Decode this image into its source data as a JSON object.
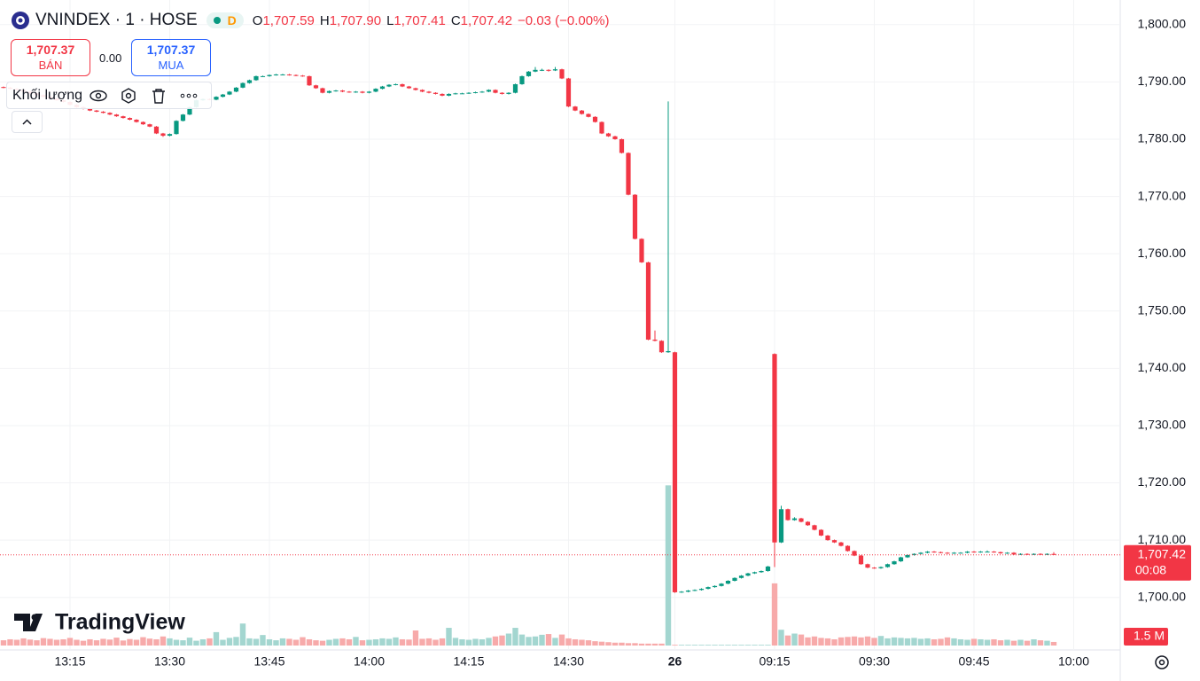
{
  "header": {
    "symbol": "VNINDEX · 1 · HOSE",
    "badge": "D",
    "o_label": "O",
    "o": "1,707.59",
    "h_label": "H",
    "h": "1,707.90",
    "l_label": "L",
    "l": "1,707.41",
    "c_label": "C",
    "c": "1,707.42",
    "change": "−0.03 (−0.00%)",
    "sell_price": "1,707.37",
    "sell_label": "BÁN",
    "spread": "0.00",
    "buy_price": "1,707.37",
    "buy_label": "MUA",
    "indicator": "Khối lượng",
    "watermark": "TradingView"
  },
  "chart_data": {
    "type": "candlestick",
    "up_color": "#089981",
    "down_color": "#f23645",
    "volume_up_color": "#a3d6d0",
    "volume_down_color": "#f7aaaa",
    "grid": true,
    "ylim": [
      1691.6,
      1804.3
    ],
    "yticks": [
      {
        "value": 1700,
        "label": "1,700.00"
      },
      {
        "value": 1710,
        "label": "1,710.00"
      },
      {
        "value": 1720,
        "label": "1,720.00"
      },
      {
        "value": 1730,
        "label": "1,730.00"
      },
      {
        "value": 1740,
        "label": "1,740.00"
      },
      {
        "value": 1750,
        "label": "1,750.00"
      },
      {
        "value": 1760,
        "label": "1,760.00"
      },
      {
        "value": 1770,
        "label": "1,770.00"
      },
      {
        "value": 1780,
        "label": "1,780.00"
      },
      {
        "value": 1790,
        "label": "1,790.00"
      },
      {
        "value": 1800,
        "label": "1,800.00"
      }
    ],
    "xlim": [
      -0.53,
      168
    ],
    "xticks": [
      {
        "value": 10,
        "label": "13:15"
      },
      {
        "value": 25,
        "label": "13:30"
      },
      {
        "value": 40,
        "label": "13:45"
      },
      {
        "value": 55,
        "label": "14:00"
      },
      {
        "value": 70,
        "label": "14:15"
      },
      {
        "value": 85,
        "label": "14:30"
      },
      {
        "value": 101,
        "label": "26"
      },
      {
        "value": 116,
        "label": "09:15"
      },
      {
        "value": 131,
        "label": "09:30"
      },
      {
        "value": 146,
        "label": "09:45"
      },
      {
        "value": 161,
        "label": "10:00"
      }
    ],
    "last_price": {
      "value": 1707.42,
      "label": "1,707.42"
    },
    "countdown": "00:08",
    "volume_ylim": [
      0,
      270
    ],
    "volume_last_label": "1.5 M",
    "ohlc": [
      [
        1789.1,
        1789.2,
        1788.9,
        1789.0
      ],
      [
        1789.0,
        1789.1,
        1788.7,
        1788.8
      ],
      [
        1788.8,
        1788.9,
        1788.5,
        1788.6
      ],
      [
        1788.6,
        1788.7,
        1788.2,
        1788.3
      ],
      [
        1788.3,
        1788.4,
        1787.9,
        1788.0
      ],
      [
        1788.0,
        1788.1,
        1787.6,
        1787.7
      ],
      [
        1787.7,
        1787.8,
        1787.3,
        1787.4
      ],
      [
        1787.4,
        1787.5,
        1787.0,
        1787.1
      ],
      [
        1787.1,
        1787.2,
        1786.7,
        1786.8
      ],
      [
        1786.8,
        1786.9,
        1786.4,
        1786.5
      ],
      [
        1786.5,
        1786.6,
        1785.9,
        1786.0
      ],
      [
        1786.0,
        1786.1,
        1785.5,
        1785.6
      ],
      [
        1785.6,
        1785.7,
        1785.2,
        1785.3
      ],
      [
        1785.3,
        1785.4,
        1784.9,
        1785.0
      ],
      [
        1785.0,
        1785.1,
        1784.7,
        1784.8
      ],
      [
        1784.8,
        1784.9,
        1784.5,
        1784.6
      ],
      [
        1784.6,
        1784.7,
        1784.2,
        1784.3
      ],
      [
        1784.3,
        1784.4,
        1783.9,
        1784.0
      ],
      [
        1784.0,
        1784.1,
        1783.6,
        1783.7
      ],
      [
        1783.7,
        1783.8,
        1783.3,
        1783.4
      ],
      [
        1783.4,
        1783.5,
        1782.9,
        1783.0
      ],
      [
        1783.0,
        1783.1,
        1782.5,
        1782.6
      ],
      [
        1782.6,
        1782.7,
        1782.1,
        1782.2
      ],
      [
        1782.2,
        1782.3,
        1780.9,
        1781.0
      ],
      [
        1781.0,
        1781.1,
        1780.4,
        1780.6
      ],
      [
        1780.6,
        1781.0,
        1780.5,
        1780.9
      ],
      [
        1780.9,
        1783.3,
        1780.8,
        1783.2
      ],
      [
        1783.2,
        1784.4,
        1783.1,
        1784.3
      ],
      [
        1784.3,
        1785.7,
        1784.2,
        1785.6
      ],
      [
        1785.6,
        1786.9,
        1785.5,
        1786.8
      ],
      [
        1786.8,
        1787.1,
        1786.7,
        1787.0
      ],
      [
        1787.0,
        1787.1,
        1786.8,
        1786.9
      ],
      [
        1786.9,
        1787.5,
        1786.8,
        1787.4
      ],
      [
        1787.4,
        1787.9,
        1787.3,
        1787.8
      ],
      [
        1787.8,
        1788.4,
        1787.7,
        1788.3
      ],
      [
        1788.3,
        1789.1,
        1788.2,
        1789.0
      ],
      [
        1789.0,
        1789.9,
        1788.9,
        1789.8
      ],
      [
        1789.8,
        1790.4,
        1789.7,
        1790.3
      ],
      [
        1790.3,
        1791.1,
        1790.2,
        1791.0
      ],
      [
        1791.0,
        1791.1,
        1790.9,
        1791.0
      ],
      [
        1791.0,
        1791.3,
        1790.9,
        1791.2
      ],
      [
        1791.2,
        1791.4,
        1791.1,
        1791.3
      ],
      [
        1791.3,
        1791.4,
        1791.2,
        1791.3
      ],
      [
        1791.3,
        1791.4,
        1791.1,
        1791.2
      ],
      [
        1791.2,
        1791.3,
        1791.0,
        1791.1
      ],
      [
        1791.1,
        1791.2,
        1790.9,
        1791.0
      ],
      [
        1791.0,
        1791.1,
        1789.3,
        1789.4
      ],
      [
        1789.4,
        1789.5,
        1788.8,
        1788.9
      ],
      [
        1788.9,
        1789.0,
        1788.0,
        1788.1
      ],
      [
        1788.1,
        1788.5,
        1788.0,
        1788.4
      ],
      [
        1788.4,
        1788.6,
        1788.3,
        1788.5
      ],
      [
        1788.5,
        1788.6,
        1788.2,
        1788.3
      ],
      [
        1788.3,
        1788.4,
        1788.1,
        1788.2
      ],
      [
        1788.2,
        1788.4,
        1788.1,
        1788.3
      ],
      [
        1788.3,
        1788.4,
        1788.0,
        1788.1
      ],
      [
        1788.1,
        1788.4,
        1788.0,
        1788.3
      ],
      [
        1788.3,
        1788.9,
        1788.2,
        1788.8
      ],
      [
        1788.8,
        1789.3,
        1788.7,
        1789.2
      ],
      [
        1789.2,
        1789.6,
        1789.1,
        1789.5
      ],
      [
        1789.5,
        1789.7,
        1789.4,
        1789.6
      ],
      [
        1789.6,
        1789.7,
        1789.1,
        1789.2
      ],
      [
        1789.2,
        1789.3,
        1788.8,
        1788.9
      ],
      [
        1788.9,
        1789.0,
        1788.5,
        1788.6
      ],
      [
        1788.6,
        1788.7,
        1788.2,
        1788.3
      ],
      [
        1788.3,
        1788.4,
        1788.0,
        1788.1
      ],
      [
        1788.1,
        1788.2,
        1787.8,
        1787.9
      ],
      [
        1787.9,
        1788.0,
        1787.5,
        1787.6
      ],
      [
        1787.6,
        1788.0,
        1787.5,
        1787.9
      ],
      [
        1787.9,
        1788.1,
        1787.8,
        1788.0
      ],
      [
        1788.0,
        1788.1,
        1787.9,
        1788.0
      ],
      [
        1788.0,
        1788.2,
        1787.9,
        1788.1
      ],
      [
        1788.1,
        1788.3,
        1788.0,
        1788.2
      ],
      [
        1788.2,
        1788.4,
        1788.1,
        1788.3
      ],
      [
        1788.3,
        1788.7,
        1788.2,
        1788.6
      ],
      [
        1788.6,
        1788.7,
        1788.0,
        1788.1
      ],
      [
        1788.1,
        1788.2,
        1787.8,
        1787.9
      ],
      [
        1787.9,
        1788.2,
        1787.8,
        1788.1
      ],
      [
        1788.1,
        1789.7,
        1788.0,
        1789.6
      ],
      [
        1789.6,
        1791.1,
        1789.5,
        1791.0
      ],
      [
        1791.0,
        1791.9,
        1790.9,
        1791.8
      ],
      [
        1791.8,
        1792.6,
        1791.7,
        1792.1
      ],
      [
        1792.1,
        1792.3,
        1791.9,
        1792.1
      ],
      [
        1792.1,
        1792.2,
        1791.8,
        1792.0
      ],
      [
        1792.0,
        1792.6,
        1791.9,
        1792.2
      ],
      [
        1792.2,
        1792.3,
        1790.5,
        1790.6
      ],
      [
        1790.6,
        1790.7,
        1785.6,
        1785.7
      ],
      [
        1785.7,
        1785.8,
        1784.9,
        1785.0
      ],
      [
        1785.0,
        1785.1,
        1784.3,
        1784.4
      ],
      [
        1784.4,
        1784.5,
        1783.8,
        1783.9
      ],
      [
        1783.9,
        1784.0,
        1782.9,
        1783.0
      ],
      [
        1783.0,
        1783.1,
        1780.9,
        1781.0
      ],
      [
        1781.0,
        1781.1,
        1780.4,
        1780.5
      ],
      [
        1780.5,
        1780.6,
        1779.9,
        1780.0
      ],
      [
        1780.0,
        1780.1,
        1777.5,
        1777.6
      ],
      [
        1777.6,
        1777.7,
        1770.2,
        1770.3
      ],
      [
        1770.3,
        1770.4,
        1762.5,
        1762.6
      ],
      [
        1762.6,
        1762.7,
        1758.4,
        1758.5
      ],
      [
        1758.5,
        1758.6,
        1744.9,
        1745.0
      ],
      [
        1745.0,
        1746.6,
        1744.7,
        1744.8
      ],
      [
        1744.8,
        1744.9,
        1742.7,
        1742.8
      ],
      [
        1742.8,
        1786.6,
        1742.7,
        1743.0
      ],
      [
        1742.8,
        1742.9,
        1700.8,
        1700.9
      ],
      [
        1700.9,
        1701.1,
        1700.8,
        1701.0
      ],
      [
        1701.0,
        1701.3,
        1700.9,
        1701.2
      ],
      [
        1701.2,
        1701.4,
        1701.1,
        1701.3
      ],
      [
        1701.3,
        1701.6,
        1701.2,
        1701.5
      ],
      [
        1701.5,
        1701.9,
        1701.4,
        1701.8
      ],
      [
        1701.8,
        1702.1,
        1701.7,
        1702.0
      ],
      [
        1702.0,
        1702.5,
        1701.9,
        1702.4
      ],
      [
        1702.4,
        1703.0,
        1702.3,
        1702.9
      ],
      [
        1702.9,
        1703.5,
        1702.8,
        1703.4
      ],
      [
        1703.4,
        1703.9,
        1703.3,
        1703.8
      ],
      [
        1703.8,
        1704.3,
        1703.7,
        1704.2
      ],
      [
        1704.2,
        1704.5,
        1704.1,
        1704.4
      ],
      [
        1704.4,
        1704.7,
        1704.3,
        1704.6
      ],
      [
        1704.6,
        1705.5,
        1704.5,
        1705.4
      ],
      [
        1742.5,
        1742.6,
        1705.3,
        1709.6
      ],
      [
        1709.6,
        1716.0,
        1709.5,
        1715.4
      ],
      [
        1715.4,
        1715.5,
        1713.4,
        1713.5
      ],
      [
        1713.5,
        1714.0,
        1713.4,
        1713.8
      ],
      [
        1713.8,
        1713.9,
        1713.1,
        1713.2
      ],
      [
        1713.2,
        1713.3,
        1712.5,
        1712.6
      ],
      [
        1712.6,
        1712.7,
        1711.7,
        1711.8
      ],
      [
        1711.8,
        1711.9,
        1710.7,
        1710.8
      ],
      [
        1710.8,
        1710.9,
        1709.9,
        1710.0
      ],
      [
        1710.0,
        1710.1,
        1709.5,
        1709.6
      ],
      [
        1709.6,
        1709.7,
        1708.9,
        1709.0
      ],
      [
        1709.0,
        1709.1,
        1708.0,
        1708.1
      ],
      [
        1708.1,
        1708.2,
        1707.2,
        1707.3
      ],
      [
        1707.3,
        1707.4,
        1705.7,
        1705.8
      ],
      [
        1705.8,
        1705.9,
        1705.1,
        1705.2
      ],
      [
        1705.2,
        1705.3,
        1705.0,
        1705.1
      ],
      [
        1705.1,
        1705.4,
        1705.0,
        1705.3
      ],
      [
        1705.3,
        1705.9,
        1705.2,
        1705.8
      ],
      [
        1705.8,
        1706.4,
        1705.7,
        1706.3
      ],
      [
        1706.3,
        1707.1,
        1706.2,
        1707.0
      ],
      [
        1707.0,
        1707.5,
        1706.9,
        1707.4
      ],
      [
        1707.4,
        1707.7,
        1707.3,
        1707.6
      ],
      [
        1707.6,
        1707.9,
        1707.5,
        1707.8
      ],
      [
        1707.8,
        1708.1,
        1707.7,
        1708.0
      ],
      [
        1708.0,
        1708.1,
        1707.8,
        1707.9
      ],
      [
        1707.9,
        1708.0,
        1707.7,
        1707.8
      ],
      [
        1707.8,
        1707.9,
        1707.6,
        1707.7
      ],
      [
        1707.7,
        1707.9,
        1707.6,
        1707.8
      ],
      [
        1707.8,
        1707.9,
        1707.7,
        1707.8
      ],
      [
        1707.8,
        1708.1,
        1707.7,
        1708.0
      ],
      [
        1708.0,
        1708.1,
        1707.8,
        1707.9
      ],
      [
        1707.9,
        1708.1,
        1707.8,
        1708.0
      ],
      [
        1708.0,
        1708.2,
        1707.9,
        1708.0
      ],
      [
        1708.0,
        1708.1,
        1707.8,
        1707.9
      ],
      [
        1707.9,
        1708.0,
        1707.6,
        1707.7
      ],
      [
        1707.7,
        1707.9,
        1707.6,
        1707.8
      ],
      [
        1707.8,
        1707.9,
        1707.4,
        1707.5
      ],
      [
        1707.5,
        1707.7,
        1707.4,
        1707.6
      ],
      [
        1707.6,
        1707.7,
        1707.4,
        1707.5
      ],
      [
        1707.5,
        1707.7,
        1707.4,
        1707.6
      ],
      [
        1707.6,
        1707.7,
        1707.4,
        1707.5
      ],
      [
        1707.5,
        1707.7,
        1707.4,
        1707.6
      ],
      [
        1707.59,
        1707.9,
        1707.41,
        1707.42
      ]
    ],
    "volume": [
      2.2,
      2.6,
      2.4,
      3.0,
      2.5,
      2.2,
      3.1,
      2.8,
      2.4,
      2.6,
      3.2,
      2.4,
      2.0,
      2.6,
      2.2,
      2.8,
      2.5,
      3.3,
      2.1,
      2.7,
      2.4,
      3.5,
      2.9,
      2.6,
      3.8,
      3.0,
      2.4,
      2.2,
      3.3,
      2.0,
      2.6,
      3.0,
      5.6,
      2.4,
      3.2,
      3.6,
      9.2,
      3.0,
      2.8,
      4.4,
      2.6,
      2.2,
      3.0,
      2.8,
      2.4,
      3.5,
      2.6,
      2.2,
      2.0,
      2.4,
      2.8,
      3.0,
      2.6,
      3.6,
      2.2,
      2.4,
      2.6,
      3.0,
      2.8,
      3.4,
      2.6,
      2.5,
      6.3,
      2.8,
      3.0,
      2.4,
      3.0,
      7.4,
      3.2,
      2.6,
      2.4,
      2.8,
      2.6,
      3.2,
      3.8,
      4.2,
      5.0,
      7.4,
      4.6,
      3.6,
      3.8,
      4.5,
      4.8,
      3.2,
      4.6,
      3.0,
      2.6,
      2.4,
      2.2,
      1.8,
      1.6,
      1.4,
      1.2,
      1.2,
      1.0,
      1.0,
      0.8,
      0.8,
      0.8,
      0.8,
      67.0,
      0.3,
      0.3,
      0.3,
      0.3,
      0.3,
      0.3,
      0.3,
      0.3,
      0.3,
      0.3,
      0.3,
      0.3,
      0.3,
      0.3,
      0.3,
      26.0,
      6.6,
      4.2,
      5.0,
      4.6,
      3.4,
      3.8,
      3.2,
      3.0,
      2.6,
      3.4,
      3.6,
      3.8,
      3.4,
      3.8,
      3.2,
      4.0,
      3.0,
      3.4,
      3.2,
      3.0,
      3.2,
      2.8,
      3.0,
      2.6,
      2.8,
      3.4,
      3.0,
      2.6,
      2.4,
      2.8,
      2.6,
      2.4,
      2.6,
      2.2,
      2.4,
      2.0,
      2.4,
      2.0,
      2.6,
      2.2,
      2.0,
      1.5
    ]
  }
}
